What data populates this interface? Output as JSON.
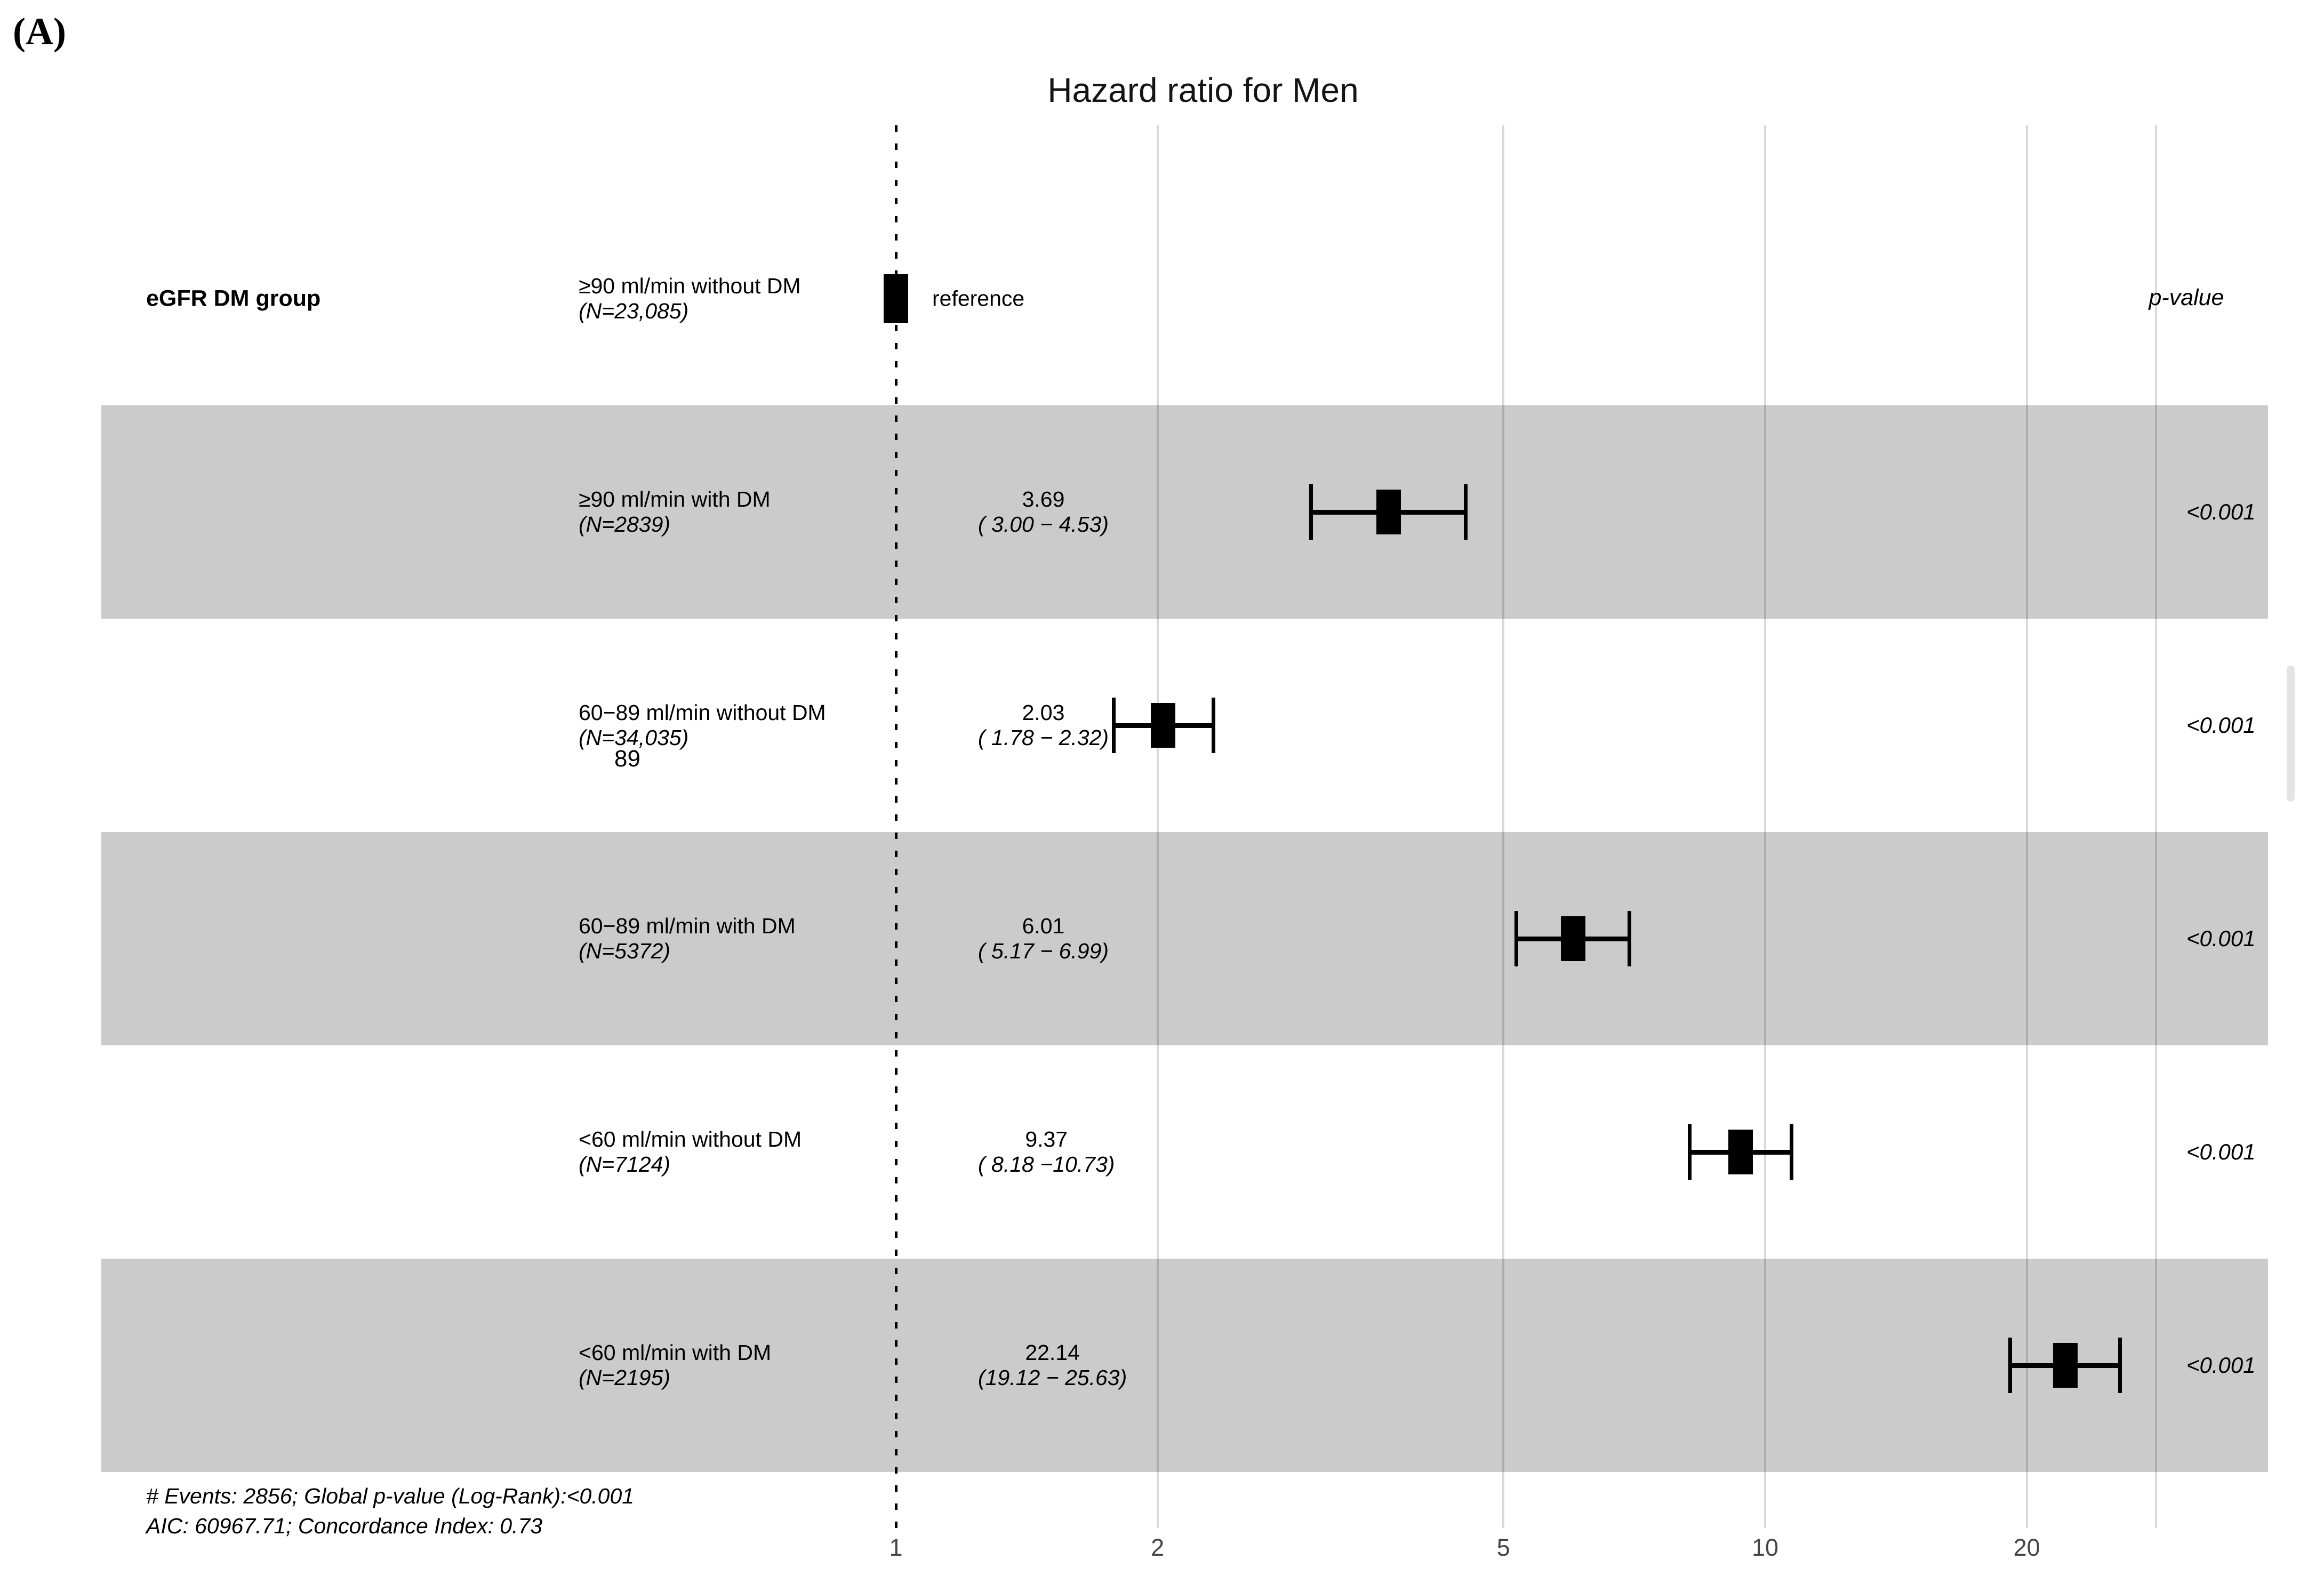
{
  "panel_label": "(A)",
  "chart_data": {
    "type": "forest",
    "title": "Hazard ratio for Men",
    "x_scale": "log",
    "x_ticks": [
      "1",
      "2",
      "5",
      "10",
      "20"
    ],
    "x_tick_values": [
      1,
      2,
      5,
      10,
      20
    ],
    "column_headers": {
      "group": "eGFR DM group",
      "p_value": "p-value"
    },
    "rows": [
      {
        "group": "≥90 ml/min without DM",
        "n": "(N=23,085)",
        "hr": 1.0,
        "ci_low": null,
        "ci_high": null,
        "hr_text": "",
        "ci_text": "",
        "estimate_text": "reference",
        "p_value": "",
        "shaded": false,
        "is_reference": true
      },
      {
        "group": "≥90 ml/min with DM",
        "n": "(N=2839)",
        "hr": 3.69,
        "ci_low": 3.0,
        "ci_high": 4.53,
        "hr_text": "3.69",
        "ci_text": "( 3.00 − 4.53)",
        "estimate_text": "",
        "p_value": "<0.001",
        "shaded": true,
        "is_reference": false
      },
      {
        "group": "60−89 ml/min without DM",
        "n": "(N=34,035)",
        "hr": 2.03,
        "ci_low": 1.78,
        "ci_high": 2.32,
        "hr_text": "2.03",
        "ci_text": "( 1.78 − 2.32)",
        "estimate_text": "",
        "p_value": "<0.001",
        "shaded": false,
        "is_reference": false,
        "stray_note": "89"
      },
      {
        "group": "60−89 ml/min with DM",
        "n": "(N=5372)",
        "hr": 6.01,
        "ci_low": 5.17,
        "ci_high": 6.99,
        "hr_text": "6.01",
        "ci_text": "( 5.17 − 6.99)",
        "estimate_text": "",
        "p_value": "<0.001",
        "shaded": true,
        "is_reference": false
      },
      {
        "group": "<60 ml/min without DM",
        "n": "(N=7124)",
        "hr": 9.37,
        "ci_low": 8.18,
        "ci_high": 10.73,
        "hr_text": "9.37",
        "ci_text": "( 8.18 −10.73)",
        "estimate_text": "",
        "p_value": "<0.001",
        "shaded": false,
        "is_reference": false
      },
      {
        "group": "<60 ml/min with DM",
        "n": "(N=2195)",
        "hr": 22.14,
        "ci_low": 19.12,
        "ci_high": 25.63,
        "hr_text": "22.14",
        "ci_text": "(19.12 − 25.63)",
        "estimate_text": "",
        "p_value": "<0.001",
        "shaded": true,
        "is_reference": false
      }
    ],
    "footnotes": [
      "# Events: 2856; Global p-value (Log-Rank):<0.001",
      "AIC: 60967.71; Concordance Index: 0.73"
    ],
    "colors": {
      "band": "#cbcbcb",
      "marker": "#000000",
      "tick_label": "#454545",
      "scrollbar_thumb": "#e4e4e4"
    }
  }
}
